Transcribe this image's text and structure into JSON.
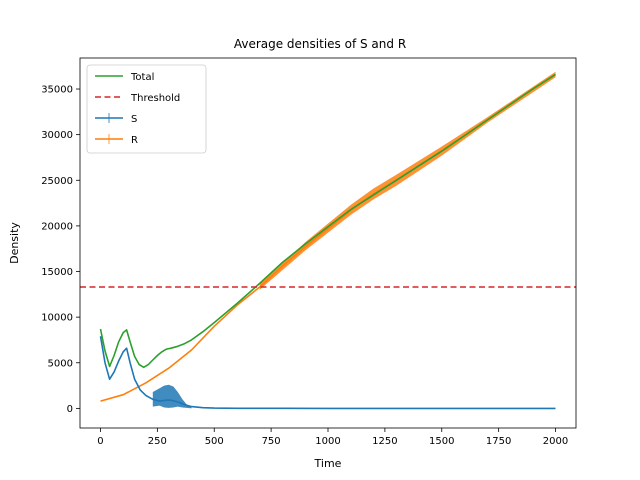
{
  "chart_data": {
    "type": "line",
    "title": "Average densities of S and R",
    "xlabel": "Time",
    "ylabel": "Density",
    "xlim": [
      -90,
      2090
    ],
    "ylim": [
      -2150,
      38400
    ],
    "xticks": [
      0,
      250,
      500,
      750,
      1000,
      1250,
      1500,
      1750,
      2000
    ],
    "xtick_labels": [
      "0",
      "250",
      "500",
      "750",
      "1000",
      "1250",
      "1500",
      "1750",
      "2000"
    ],
    "yticks": [
      0,
      5000,
      10000,
      15000,
      20000,
      25000,
      30000,
      35000
    ],
    "ytick_labels": [
      "0",
      "5000",
      "10000",
      "15000",
      "20000",
      "25000",
      "30000",
      "35000"
    ],
    "grid": false,
    "legend_position": "top-left",
    "threshold": 13300,
    "series": [
      {
        "name": "Total",
        "color": "#2ca02c",
        "style": "solid",
        "x": [
          0,
          20,
          40,
          60,
          80,
          100,
          115,
          130,
          150,
          170,
          190,
          210,
          230,
          250,
          270,
          290,
          310,
          340,
          370,
          400,
          450,
          500,
          600,
          700,
          800,
          900,
          1000,
          1100,
          1200,
          1300,
          1400,
          1500,
          1600,
          1700,
          1800,
          1900,
          2000
        ],
        "values": [
          8700,
          6300,
          4600,
          5800,
          7300,
          8300,
          8600,
          7300,
          5700,
          4800,
          4500,
          4800,
          5300,
          5800,
          6200,
          6500,
          6600,
          6800,
          7100,
          7500,
          8400,
          9400,
          11500,
          13700,
          16000,
          18000,
          19900,
          21800,
          23400,
          25000,
          26600,
          28200,
          29900,
          31600,
          33300,
          35000,
          36600
        ]
      },
      {
        "name": "Threshold",
        "color": "#d62728",
        "style": "dashed",
        "x": [
          -90,
          2090
        ],
        "values": [
          13300,
          13300
        ]
      },
      {
        "name": "S",
        "color": "#1f77b4",
        "style": "solid",
        "x": [
          0,
          20,
          40,
          60,
          80,
          100,
          115,
          130,
          150,
          175,
          200,
          230,
          260,
          290,
          310,
          340,
          370,
          400,
          450,
          500,
          600,
          800,
          1000,
          1500,
          2000
        ],
        "values": [
          7900,
          5000,
          3200,
          4000,
          5200,
          6200,
          6600,
          5000,
          3200,
          2000,
          1400,
          1000,
          800,
          900,
          900,
          700,
          400,
          200,
          80,
          30,
          10,
          5,
          3,
          2,
          2
        ],
        "band_x": [
          230,
          260,
          280,
          300,
          320,
          340,
          360,
          380,
          400
        ],
        "band_low": [
          200,
          300,
          100,
          50,
          100,
          200,
          100,
          50,
          0
        ],
        "band_high": [
          1800,
          2200,
          2500,
          2600,
          2400,
          1800,
          1000,
          400,
          150
        ]
      },
      {
        "name": "R",
        "color": "#ff7f0e",
        "style": "solid",
        "x": [
          0,
          100,
          200,
          300,
          400,
          500,
          600,
          700,
          800,
          900,
          1000,
          1100,
          1200,
          1300,
          1400,
          1500,
          1600,
          1700,
          1800,
          1900,
          2000
        ],
        "values": [
          800,
          1500,
          2800,
          4400,
          6400,
          9000,
          11300,
          13300,
          15600,
          17700,
          19700,
          21700,
          23500,
          25000,
          26600,
          28200,
          29900,
          31600,
          33300,
          35000,
          36600
        ],
        "band_x": [
          700,
          900,
          1100,
          1200,
          1300,
          1500,
          1700,
          2000
        ],
        "band_low": [
          13000,
          17300,
          21200,
          22900,
          24400,
          27700,
          31300,
          36300
        ],
        "band_high": [
          13600,
          18200,
          22300,
          24100,
          25600,
          28700,
          31900,
          36900
        ]
      }
    ]
  }
}
